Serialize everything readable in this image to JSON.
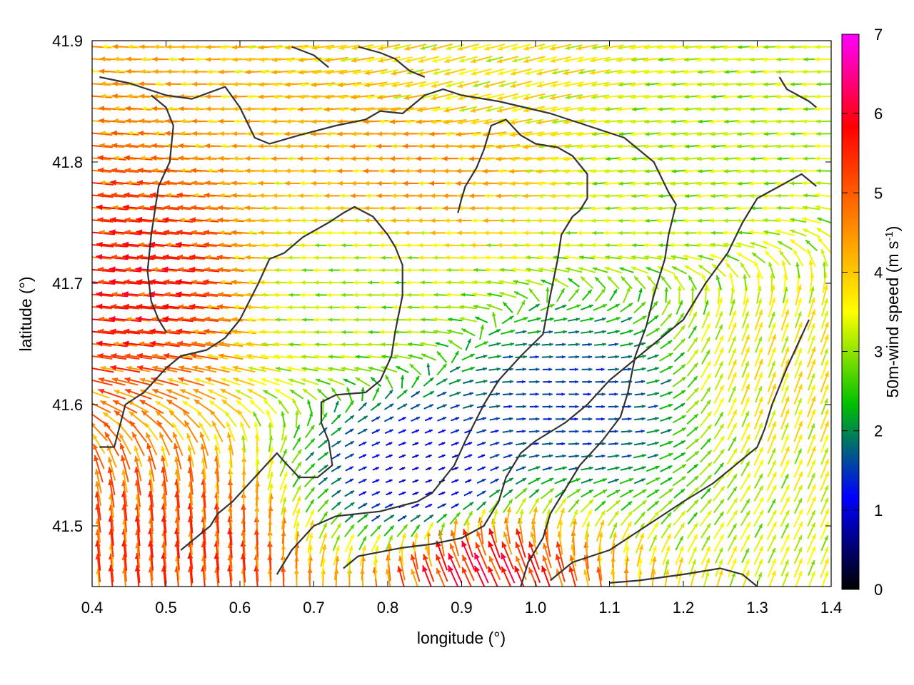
{
  "chart_data": {
    "type": "vector-field",
    "title": "",
    "xlabel": "longitude (°)",
    "ylabel": "latitude (°)",
    "xlim": [
      0.4,
      1.4
    ],
    "ylim": [
      41.45,
      41.9
    ],
    "x_ticks": [
      0.4,
      0.5,
      0.6,
      0.7,
      0.8,
      0.9,
      1.0,
      1.1,
      1.2,
      1.3,
      1.4
    ],
    "x_tick_labels": [
      "0.4",
      "0.5",
      "0.6",
      "0.7",
      "0.8",
      "0.9",
      "1.0",
      "1.1",
      "1.2",
      "1.3",
      "1.4"
    ],
    "y_ticks": [
      41.5,
      41.6,
      41.7,
      41.8,
      41.9
    ],
    "y_tick_labels": [
      "41.5",
      "41.6",
      "41.7",
      "41.8",
      "41.9"
    ],
    "grid": false,
    "colorbar": {
      "label_main": "50m-wind speed (m s",
      "label_sup": "-1",
      "label_close": ")",
      "range": [
        0,
        7
      ],
      "ticks": [
        0,
        1,
        2,
        3,
        4,
        5,
        6,
        7
      ],
      "tick_labels": [
        "0",
        "1",
        "2",
        "3",
        "4",
        "5",
        "6",
        "7"
      ],
      "colors": [
        "#000000",
        "#0000ff",
        "#00c000",
        "#ffff00",
        "#ff8000",
        "#ff0000",
        "#ff00ff"
      ]
    },
    "wind_regions": [
      {
        "center": [
          0.46,
          41.7
        ],
        "speed": 5.3,
        "direction_deg": 175
      },
      {
        "center": [
          0.85,
          41.8
        ],
        "speed": 4.2,
        "direction_deg": 180
      },
      {
        "center": [
          0.75,
          41.69
        ],
        "speed": 3.0,
        "direction_deg": 180
      },
      {
        "center": [
          1.35,
          41.62
        ],
        "speed": 3.5,
        "direction_deg": 70
      },
      {
        "center": [
          0.92,
          41.46
        ],
        "speed": 5.5,
        "direction_deg": 115
      },
      {
        "center": [
          0.53,
          41.47
        ],
        "speed": 5.0,
        "direction_deg": 95
      },
      {
        "center": [
          0.92,
          41.87
        ],
        "speed": 3.5,
        "direction_deg": 195
      },
      {
        "center": [
          1.2,
          41.8
        ],
        "speed": 3.0,
        "direction_deg": 185
      },
      {
        "center": [
          0.85,
          41.54
        ],
        "speed": 0.8,
        "direction_deg": 20
      },
      {
        "center": [
          1.05,
          41.6
        ],
        "speed": 1.4,
        "direction_deg": 0
      }
    ],
    "terrain_contours": [
      [
        [
          0.41,
          41.87
        ],
        [
          0.45,
          41.865
        ],
        [
          0.5,
          41.855
        ],
        [
          0.535,
          41.852
        ],
        [
          0.58,
          41.862
        ],
        [
          0.6,
          41.845
        ],
        [
          0.62,
          41.82
        ],
        [
          0.64,
          41.815
        ],
        [
          0.68,
          41.822
        ],
        [
          0.73,
          41.83
        ],
        [
          0.77,
          41.835
        ],
        [
          0.79,
          41.842
        ],
        [
          0.82,
          41.84
        ],
        [
          0.85,
          41.855
        ],
        [
          0.875,
          41.86
        ],
        [
          0.9,
          41.855
        ],
        [
          0.95,
          41.85
        ],
        [
          1.02,
          41.84
        ],
        [
          1.07,
          41.83
        ],
        [
          1.12,
          41.82
        ],
        [
          1.16,
          41.8
        ],
        [
          1.18,
          41.775
        ],
        [
          1.19,
          41.765
        ],
        [
          1.18,
          41.74
        ],
        [
          1.175,
          41.72
        ],
        [
          1.16,
          41.69
        ],
        [
          1.15,
          41.665
        ],
        [
          1.135,
          41.64
        ],
        [
          1.125,
          41.61
        ],
        [
          1.115,
          41.59
        ],
        [
          1.09,
          41.57
        ],
        [
          1.075,
          41.56
        ],
        [
          1.06,
          41.55
        ],
        [
          1.04,
          41.53
        ],
        [
          1.02,
          41.51
        ],
        [
          1.01,
          41.49
        ],
        [
          0.99,
          41.47
        ],
        [
          0.98,
          41.45
        ]
      ],
      [
        [
          0.41,
          41.565
        ],
        [
          0.43,
          41.565
        ],
        [
          0.445,
          41.6
        ],
        [
          0.47,
          41.61
        ],
        [
          0.5,
          41.63
        ],
        [
          0.52,
          41.64
        ],
        [
          0.555,
          41.645
        ],
        [
          0.58,
          41.655
        ],
        [
          0.6,
          41.67
        ],
        [
          0.625,
          41.7
        ],
        [
          0.64,
          41.72
        ],
        [
          0.66,
          41.725
        ],
        [
          0.685,
          41.738
        ],
        [
          0.72,
          41.75
        ],
        [
          0.74,
          41.758
        ],
        [
          0.755,
          41.763
        ],
        [
          0.78,
          41.755
        ],
        [
          0.8,
          41.74
        ],
        [
          0.81,
          41.73
        ],
        [
          0.82,
          41.715
        ],
        [
          0.82,
          41.69
        ],
        [
          0.81,
          41.66
        ],
        [
          0.805,
          41.64
        ],
        [
          0.79,
          41.62
        ],
        [
          0.77,
          41.61
        ],
        [
          0.73,
          41.608
        ],
        [
          0.71,
          41.602
        ],
        [
          0.71,
          41.585
        ],
        [
          0.72,
          41.57
        ],
        [
          0.725,
          41.55
        ],
        [
          0.705,
          41.54
        ],
        [
          0.68,
          41.54
        ],
        [
          0.66,
          41.553
        ],
        [
          0.65,
          41.56
        ],
        [
          0.62,
          41.54
        ],
        [
          0.59,
          41.52
        ],
        [
          0.57,
          41.51
        ],
        [
          0.56,
          41.5
        ],
        [
          0.52,
          41.48
        ]
      ],
      [
        [
          0.5,
          41.66
        ],
        [
          0.49,
          41.67
        ],
        [
          0.48,
          41.685
        ],
        [
          0.475,
          41.71
        ],
        [
          0.48,
          41.74
        ],
        [
          0.49,
          41.78
        ],
        [
          0.505,
          41.8
        ],
        [
          0.51,
          41.83
        ],
        [
          0.5,
          41.845
        ],
        [
          0.48,
          41.855
        ]
      ],
      [
        [
          0.65,
          41.46
        ],
        [
          0.67,
          41.48
        ],
        [
          0.7,
          41.5
        ],
        [
          0.73,
          41.508
        ],
        [
          0.79,
          41.512
        ],
        [
          0.84,
          41.52
        ],
        [
          0.86,
          41.527
        ],
        [
          0.89,
          41.55
        ],
        [
          0.905,
          41.57
        ],
        [
          0.93,
          41.6
        ],
        [
          0.95,
          41.62
        ],
        [
          0.98,
          41.64
        ],
        [
          1.01,
          41.658
        ],
        [
          1.02,
          41.69
        ],
        [
          1.03,
          41.72
        ],
        [
          1.035,
          41.74
        ],
        [
          1.05,
          41.755
        ],
        [
          1.06,
          41.76
        ],
        [
          1.07,
          41.77
        ],
        [
          1.07,
          41.79
        ],
        [
          1.05,
          41.805
        ],
        [
          1.03,
          41.812
        ],
        [
          1.0,
          41.815
        ],
        [
          0.98,
          41.822
        ],
        [
          0.96,
          41.835
        ],
        [
          0.94,
          41.83
        ],
        [
          0.93,
          41.81
        ],
        [
          0.92,
          41.795
        ],
        [
          0.905,
          41.78
        ],
        [
          0.9,
          41.77
        ],
        [
          0.895,
          41.758
        ]
      ],
      [
        [
          0.74,
          41.465
        ],
        [
          0.76,
          41.475
        ],
        [
          0.82,
          41.482
        ],
        [
          0.86,
          41.485
        ],
        [
          0.9,
          41.49
        ],
        [
          0.93,
          41.5
        ],
        [
          0.95,
          41.52
        ],
        [
          0.96,
          41.54
        ],
        [
          0.98,
          41.56
        ],
        [
          1.0,
          41.57
        ],
        [
          1.04,
          41.585
        ],
        [
          1.07,
          41.6
        ],
        [
          1.1,
          41.62
        ],
        [
          1.14,
          41.64
        ],
        [
          1.17,
          41.655
        ],
        [
          1.2,
          41.67
        ],
        [
          1.23,
          41.7
        ],
        [
          1.26,
          41.725
        ],
        [
          1.28,
          41.75
        ],
        [
          1.3,
          41.77
        ],
        [
          1.33,
          41.78
        ],
        [
          1.36,
          41.79
        ],
        [
          1.38,
          41.78
        ]
      ],
      [
        [
          1.02,
          41.455
        ],
        [
          1.05,
          41.47
        ],
        [
          1.1,
          41.48
        ],
        [
          1.15,
          41.5
        ],
        [
          1.2,
          41.52
        ],
        [
          1.24,
          41.535
        ],
        [
          1.28,
          41.555
        ],
        [
          1.3,
          41.565
        ],
        [
          1.31,
          41.58
        ],
        [
          1.32,
          41.6
        ],
        [
          1.34,
          41.63
        ],
        [
          1.355,
          41.65
        ],
        [
          1.37,
          41.67
        ]
      ],
      [
        [
          1.1,
          41.453
        ],
        [
          1.14,
          41.455
        ],
        [
          1.2,
          41.46
        ],
        [
          1.25,
          41.465
        ],
        [
          1.28,
          41.46
        ],
        [
          1.3,
          41.45
        ]
      ],
      [
        [
          1.33,
          41.87
        ],
        [
          1.335,
          41.865
        ],
        [
          1.34,
          41.86
        ],
        [
          1.355,
          41.855
        ],
        [
          1.37,
          41.85
        ],
        [
          1.38,
          41.845
        ]
      ],
      [
        [
          0.76,
          41.895
        ],
        [
          0.79,
          41.89
        ],
        [
          0.81,
          41.885
        ],
        [
          0.83,
          41.875
        ],
        [
          0.85,
          41.87
        ]
      ],
      [
        [
          0.67,
          41.895
        ],
        [
          0.7,
          41.888
        ],
        [
          0.72,
          41.878
        ]
      ]
    ]
  }
}
